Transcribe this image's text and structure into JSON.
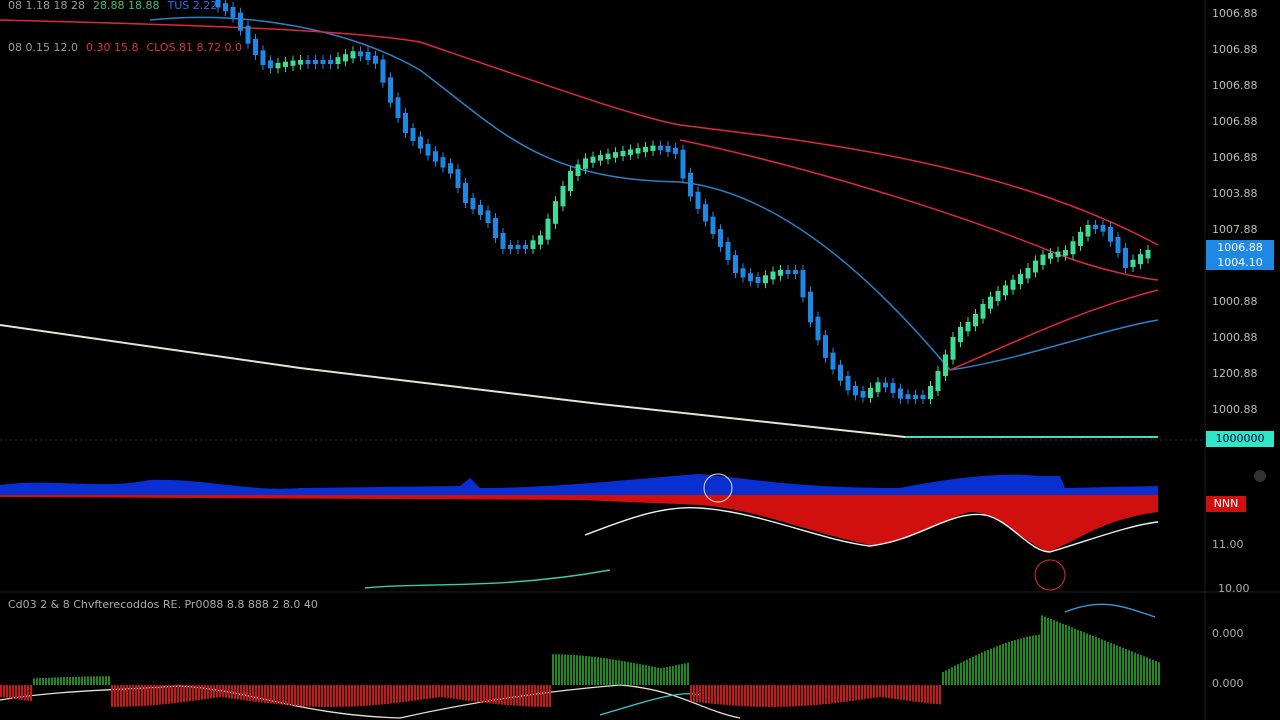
{
  "legend": {
    "line1": [
      "08 1.18 18 28",
      "28.88 18.88",
      "TUS 2.22"
    ],
    "line2": [
      "08 0.15 12.0",
      "0.30 15.8",
      "CLOS.81 8.72 0.0"
    ]
  },
  "price_axis": [
    "1006.88",
    "1006.88",
    "1006.88",
    "1006.88",
    "1006.88",
    "1003.88",
    "1007.88",
    "1000.88",
    "1000.88",
    "1200.88",
    "1000.88"
  ],
  "price_tag": [
    "1006.88",
    "1004.10"
  ],
  "line_tag": "1000000",
  "oscillator": {
    "tag": "NNN",
    "axis": [
      "11.00",
      "10.00"
    ]
  },
  "macd": {
    "label": "Cd03 2 & 8  Chvfterecoddos  RE.  Pr0088 8.8 888 2 8.0 40",
    "axis": [
      "0.000",
      "0.000"
    ]
  }
}
